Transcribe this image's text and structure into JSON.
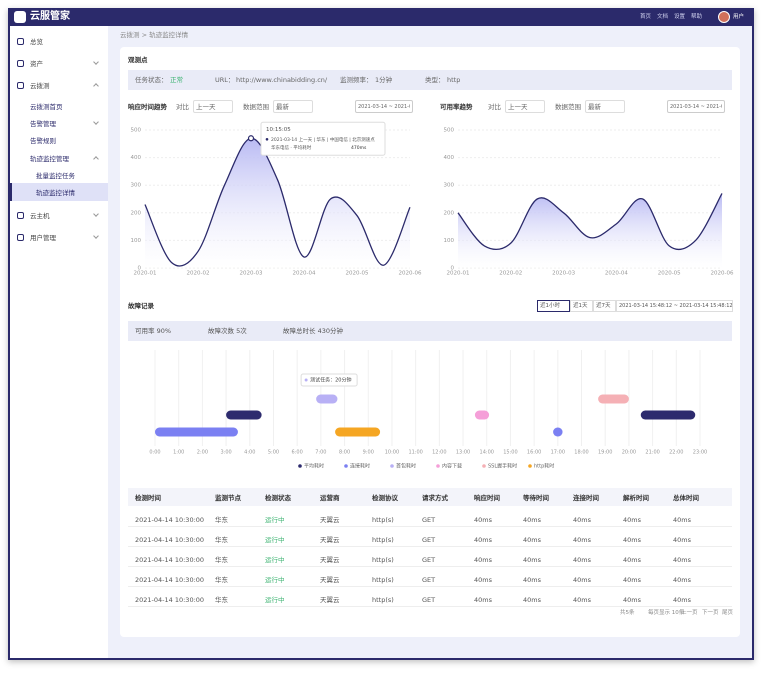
{
  "app": {
    "logo": "云服管家",
    "nav": [
      "首页",
      "文档",
      "设置",
      "帮助"
    ],
    "user": "用户"
  },
  "sidebar": [
    {
      "label": "总览",
      "level": 0
    },
    {
      "label": "资产",
      "level": 0,
      "expanded": false
    },
    {
      "label": "云拨测",
      "level": 0,
      "expanded": true
    },
    {
      "label": "云拨测首页",
      "level": 1
    },
    {
      "label": "告警管理",
      "level": 1,
      "expanded": false
    },
    {
      "label": "告警规则",
      "level": 1
    },
    {
      "label": "轨迹监控管理",
      "level": 1,
      "expanded": true
    },
    {
      "label": "批量监控任务",
      "level": 2
    },
    {
      "label": "轨迹监控详情",
      "level": 2,
      "selected": true
    },
    {
      "label": "云主机",
      "level": 0,
      "expanded": false
    },
    {
      "label": "用户管理",
      "level": 0,
      "expanded": false
    }
  ],
  "breadcrumb": "云拨测 > 轨迹监控详情",
  "section": "观测点",
  "info": [
    {
      "label": "任务状态：",
      "value": "正常"
    },
    {
      "label": "URL：",
      "value": "http://www.chinabidding.cn/"
    },
    {
      "label": "监测频率：",
      "value": "1分钟"
    },
    {
      "label": "类型：",
      "value": "http"
    }
  ],
  "chart_data": [
    {
      "type": "line",
      "title": "响应时间趋势",
      "controls": [
        {
          "label": "对比",
          "value": "上一天"
        },
        {
          "label": "数据范围",
          "value": "最新"
        }
      ],
      "date": "2021-03-14 ~ 2021-03-15",
      "categories": [
        "2020-01",
        null,
        "2020-02",
        null,
        "2020-03",
        null,
        "2020-04",
        null,
        "2020-05",
        null,
        "2020-06"
      ],
      "values": [
        230,
        20,
        60,
        300,
        470,
        320,
        40,
        250,
        190,
        10,
        220
      ],
      "color": "#2b2a6b",
      "ylim": [
        0,
        500
      ],
      "yticks": [
        0,
        100,
        200,
        300,
        400,
        500
      ],
      "grid": true,
      "tooltip": {
        "time": "10:15:05",
        "line1": "2021-03-14 上一天 | 华东 | 中国电信 | 北京测速点",
        "line2": "华东电信 · 平均耗时",
        "value": "470ms"
      }
    },
    {
      "type": "line",
      "title": "可用率趋势",
      "controls": [
        {
          "label": "对比",
          "value": "上一天"
        },
        {
          "label": "数据范围",
          "value": "最新"
        }
      ],
      "date": "2021-03-14 ~ 2021-03-15",
      "categories": [
        "2020-01",
        null,
        "2020-02",
        null,
        "2020-03",
        null,
        "2020-04",
        null,
        "2020-05",
        null,
        "2020-06"
      ],
      "values": [
        200,
        80,
        90,
        250,
        200,
        110,
        160,
        250,
        80,
        100,
        270
      ],
      "color": "#2b2a6b",
      "ylim": [
        0,
        500
      ],
      "yticks": [
        0,
        100,
        200,
        300,
        400,
        500
      ],
      "grid": true
    },
    {
      "type": "timeline",
      "title": "故障记录",
      "ranges": [
        "近1小时",
        "近1天",
        "近7天"
      ],
      "date_range": "2021-03-14 15:48:12 ~ 2021-03-14 15:48:12",
      "summary": [
        "可用率 90%",
        "故障次数 5次",
        "故障总时长 430分钟"
      ],
      "tooltip": "测试任务：20分钟",
      "xlim": [
        0,
        23
      ],
      "xticks": [
        {
          "value": 0,
          "label": "0:00"
        },
        {
          "value": 1,
          "label": "1:00"
        },
        {
          "value": 2,
          "label": "2:00"
        },
        {
          "value": 3,
          "label": "3:00"
        },
        {
          "value": 4,
          "label": "4:00"
        },
        {
          "value": 5,
          "label": "5:00"
        },
        {
          "value": 6,
          "label": "6:00"
        },
        {
          "value": 7,
          "label": "7:00"
        },
        {
          "value": 8,
          "label": "8:00"
        },
        {
          "value": 9,
          "label": "9:00"
        },
        {
          "value": 10,
          "label": "10:00"
        },
        {
          "value": 11,
          "label": "11:00"
        },
        {
          "value": 12,
          "label": "12:00"
        },
        {
          "value": 13,
          "label": "13:00"
        },
        {
          "value": 14,
          "label": "14:00"
        },
        {
          "value": 15,
          "label": "15:00"
        },
        {
          "value": 16,
          "label": "16:00"
        },
        {
          "value": 17,
          "label": "17:00"
        },
        {
          "value": 18,
          "label": "18:00"
        },
        {
          "value": 19,
          "label": "19:00"
        },
        {
          "value": 20,
          "label": "20:00"
        },
        {
          "value": 21,
          "label": "21:00"
        },
        {
          "value": 22,
          "label": "22:00"
        },
        {
          "value": 23,
          "label": "23:00"
        }
      ],
      "series": [
        {
          "name": "平均耗时",
          "color": "#2d2b6e",
          "values": [
            [
              3.0,
              4.5
            ],
            [
              20.5,
              22.8
            ]
          ]
        },
        {
          "name": "连接耗时",
          "color": "#7b80f2",
          "values": [
            [
              0,
              3.5
            ],
            [
              16.8,
              17.2
            ]
          ]
        },
        {
          "name": "首包耗时",
          "color": "#b8b0f5",
          "values": [
            [
              6.8,
              7.7
            ]
          ]
        },
        {
          "name": "内容下载",
          "color": "#f59fd8",
          "values": [
            [
              13.5,
              14.1
            ]
          ]
        },
        {
          "name": "SSL握手耗时",
          "color": "#f5b0b5",
          "values": [
            [
              18.7,
              20.0
            ]
          ]
        },
        {
          "name": "http耗时",
          "color": "#f5a623",
          "values": [
            [
              7.6,
              9.5
            ]
          ]
        }
      ]
    }
  ],
  "table": {
    "headers": [
      "检测时间",
      "监测节点",
      "检测状态",
      "运营商",
      "检测协议",
      "请求方式",
      "响应时间",
      "等待时间",
      "连接时间",
      "解析时间",
      "总体时间"
    ],
    "rows": [
      [
        "2021-04-14 10:30:00",
        "华东",
        "运行中",
        "天翼云",
        "http(s)",
        "GET",
        "40ms",
        "40ms",
        "40ms",
        "40ms",
        "40ms"
      ],
      [
        "2021-04-14 10:30:00",
        "华东",
        "运行中",
        "天翼云",
        "http(s)",
        "GET",
        "40ms",
        "40ms",
        "40ms",
        "40ms",
        "40ms"
      ],
      [
        "2021-04-14 10:30:00",
        "华东",
        "运行中",
        "天翼云",
        "http(s)",
        "GET",
        "40ms",
        "40ms",
        "40ms",
        "40ms",
        "40ms"
      ],
      [
        "2021-04-14 10:30:00",
        "华东",
        "运行中",
        "天翼云",
        "http(s)",
        "GET",
        "40ms",
        "40ms",
        "40ms",
        "40ms",
        "40ms"
      ],
      [
        "2021-04-14 10:30:00",
        "华东",
        "运行中",
        "天翼云",
        "http(s)",
        "GET",
        "40ms",
        "40ms",
        "40ms",
        "40ms",
        "40ms"
      ]
    ]
  },
  "pagination": [
    "共5条",
    "每页显示 10条",
    "上一页",
    "下一页",
    "尾页"
  ]
}
